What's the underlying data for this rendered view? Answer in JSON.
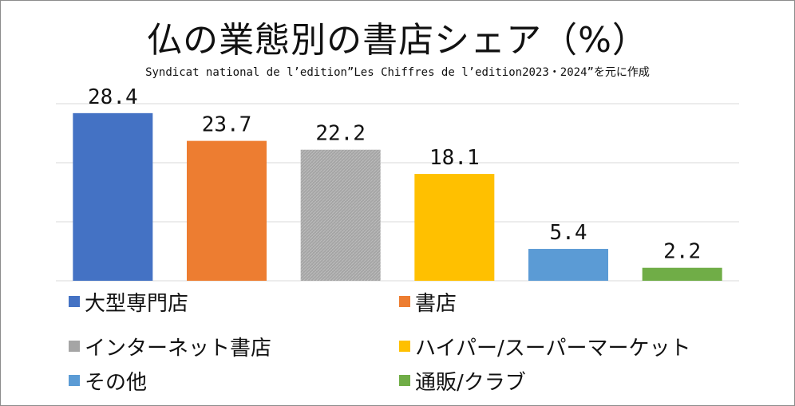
{
  "chart_data": {
    "type": "bar",
    "title": "仏の業態別の書店シェア（%）",
    "subtitle": "Syndicat national de l’edition”Les Chiffres de l’edition2023・2024”を元に作成",
    "categories": [
      "大型専門店",
      "書店",
      "インターネット書店",
      "ハイパー/スーパーマーケット",
      "その他",
      "通販/クラブ"
    ],
    "values": [
      28.4,
      23.7,
      22.2,
      18.1,
      5.4,
      2.2
    ],
    "colors": [
      "#4472c4",
      "#ed7d31",
      "#a5a5a5",
      "#ffc000",
      "#5b9bd5",
      "#70ad47"
    ],
    "ylim": [
      0,
      30
    ],
    "grid": true,
    "legend_position": "bottom"
  }
}
